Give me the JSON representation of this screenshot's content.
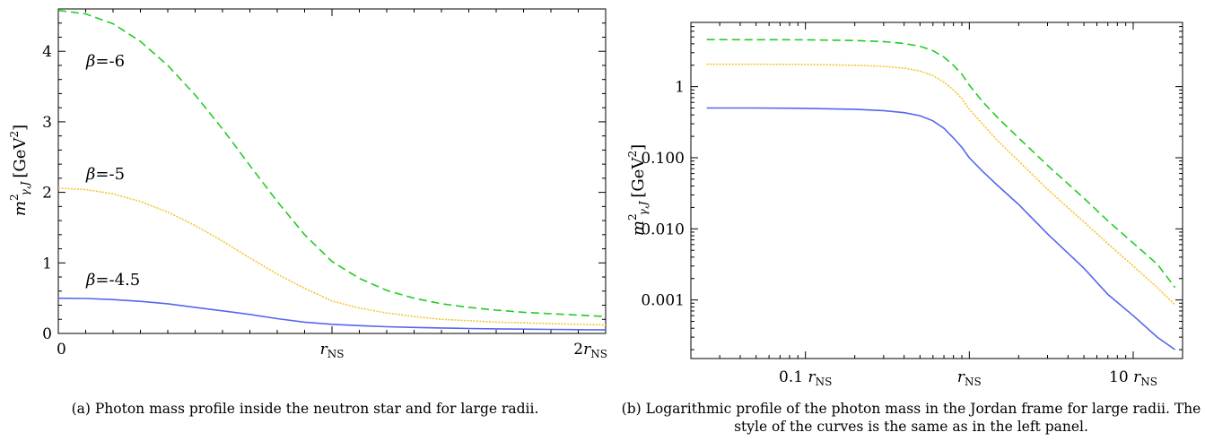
{
  "chart_data": [
    {
      "type": "line",
      "xlabel": "",
      "ylabel": "m²γ,J [GeV²]",
      "xlim": [
        0,
        2
      ],
      "ylim": [
        0,
        4.6
      ],
      "x_ticks": [
        0,
        1,
        2
      ],
      "x_tick_labels": [
        "0",
        "rNS",
        "2rNS"
      ],
      "y_ticks": [
        0,
        1,
        2,
        3,
        4
      ],
      "y_tick_labels": [
        "0",
        "1",
        "2",
        "3",
        "4"
      ],
      "series": [
        {
          "name": "β=-6",
          "color": "#22cc22",
          "dash": "dashed",
          "x": [
            0,
            0.1,
            0.2,
            0.3,
            0.4,
            0.5,
            0.6,
            0.7,
            0.8,
            0.9,
            1.0,
            1.1,
            1.2,
            1.3,
            1.4,
            1.5,
            1.6,
            1.7,
            1.8,
            1.9,
            2.0
          ],
          "values": [
            4.58,
            4.53,
            4.39,
            4.14,
            3.8,
            3.38,
            2.9,
            2.38,
            1.87,
            1.4,
            1.02,
            0.78,
            0.61,
            0.5,
            0.42,
            0.37,
            0.33,
            0.3,
            0.28,
            0.26,
            0.24
          ]
        },
        {
          "name": "β=-5",
          "color": "#f4c430",
          "dash": "dotted",
          "x": [
            0,
            0.1,
            0.2,
            0.3,
            0.4,
            0.5,
            0.6,
            0.7,
            0.8,
            0.9,
            1.0,
            1.1,
            1.2,
            1.3,
            1.4,
            1.5,
            1.6,
            1.7,
            1.8,
            1.9,
            2.0
          ],
          "values": [
            2.06,
            2.04,
            1.98,
            1.87,
            1.72,
            1.53,
            1.31,
            1.07,
            0.84,
            0.64,
            0.46,
            0.36,
            0.29,
            0.24,
            0.2,
            0.18,
            0.16,
            0.15,
            0.14,
            0.13,
            0.12
          ]
        },
        {
          "name": "β=-4.5",
          "color": "#5566ee",
          "dash": "solid",
          "x": [
            0,
            0.1,
            0.2,
            0.3,
            0.4,
            0.5,
            0.6,
            0.7,
            0.8,
            0.9,
            1.0,
            1.1,
            1.2,
            1.3,
            1.4,
            1.5,
            1.6,
            1.7,
            1.8,
            1.9,
            2.0
          ],
          "values": [
            0.5,
            0.495,
            0.48,
            0.455,
            0.42,
            0.37,
            0.32,
            0.27,
            0.21,
            0.16,
            0.13,
            0.11,
            0.095,
            0.085,
            0.077,
            0.07,
            0.065,
            0.061,
            0.057,
            0.054,
            0.05
          ]
        }
      ],
      "annotations": [
        "β=-6",
        "β=-5",
        "β=-4.5"
      ],
      "caption": "(a) Photon mass profile inside the neutron star and for large radii."
    },
    {
      "type": "line",
      "xscale": "log",
      "yscale": "log",
      "xlabel": "",
      "ylabel": "m²γ,J [GeV²]",
      "xlim": [
        0.02,
        20
      ],
      "ylim": [
        0.00015,
        8
      ],
      "x_ticks": [
        0.1,
        1,
        10
      ],
      "x_tick_labels": [
        "0.1 rNS",
        "rNS",
        "10 rNS"
      ],
      "y_ticks": [
        0.001,
        0.01,
        0.1,
        1
      ],
      "y_tick_labels": [
        "0.001",
        "0.010",
        "0.100",
        "1"
      ],
      "series": [
        {
          "color": "#22cc22",
          "dash": "dashed",
          "x": [
            0.025,
            0.05,
            0.1,
            0.2,
            0.3,
            0.4,
            0.5,
            0.6,
            0.7,
            0.8,
            0.9,
            1.0,
            1.2,
            1.5,
            2,
            3,
            5,
            7,
            10,
            14,
            18
          ],
          "values": [
            4.58,
            4.57,
            4.55,
            4.45,
            4.3,
            4.05,
            3.7,
            3.2,
            2.6,
            2.0,
            1.5,
            1.05,
            0.62,
            0.36,
            0.19,
            0.078,
            0.027,
            0.013,
            0.0063,
            0.0032,
            0.0015
          ]
        },
        {
          "color": "#f4c430",
          "dash": "dotted",
          "x": [
            0.025,
            0.05,
            0.1,
            0.2,
            0.3,
            0.4,
            0.5,
            0.6,
            0.7,
            0.8,
            0.9,
            1.0,
            1.2,
            1.5,
            2,
            3,
            5,
            7,
            10,
            14,
            18
          ],
          "values": [
            2.06,
            2.06,
            2.05,
            2.0,
            1.93,
            1.82,
            1.66,
            1.43,
            1.16,
            0.9,
            0.68,
            0.48,
            0.3,
            0.17,
            0.09,
            0.036,
            0.0125,
            0.0062,
            0.003,
            0.0015,
            0.00085
          ]
        },
        {
          "color": "#5566ee",
          "dash": "solid",
          "x": [
            0.025,
            0.05,
            0.1,
            0.2,
            0.3,
            0.4,
            0.5,
            0.6,
            0.7,
            0.8,
            0.9,
            1.0,
            1.2,
            1.5,
            2,
            3,
            5,
            7,
            10,
            14,
            18
          ],
          "values": [
            0.5,
            0.5,
            0.495,
            0.48,
            0.46,
            0.43,
            0.39,
            0.33,
            0.26,
            0.19,
            0.14,
            0.1,
            0.065,
            0.04,
            0.022,
            0.0085,
            0.0028,
            0.0012,
            0.0006,
            0.0003,
            0.0002
          ]
        }
      ],
      "caption": "(b) Logarithmic profile of the photon mass in the Jordan frame for large radii. The style of the curves is the same as in the left panel."
    }
  ]
}
